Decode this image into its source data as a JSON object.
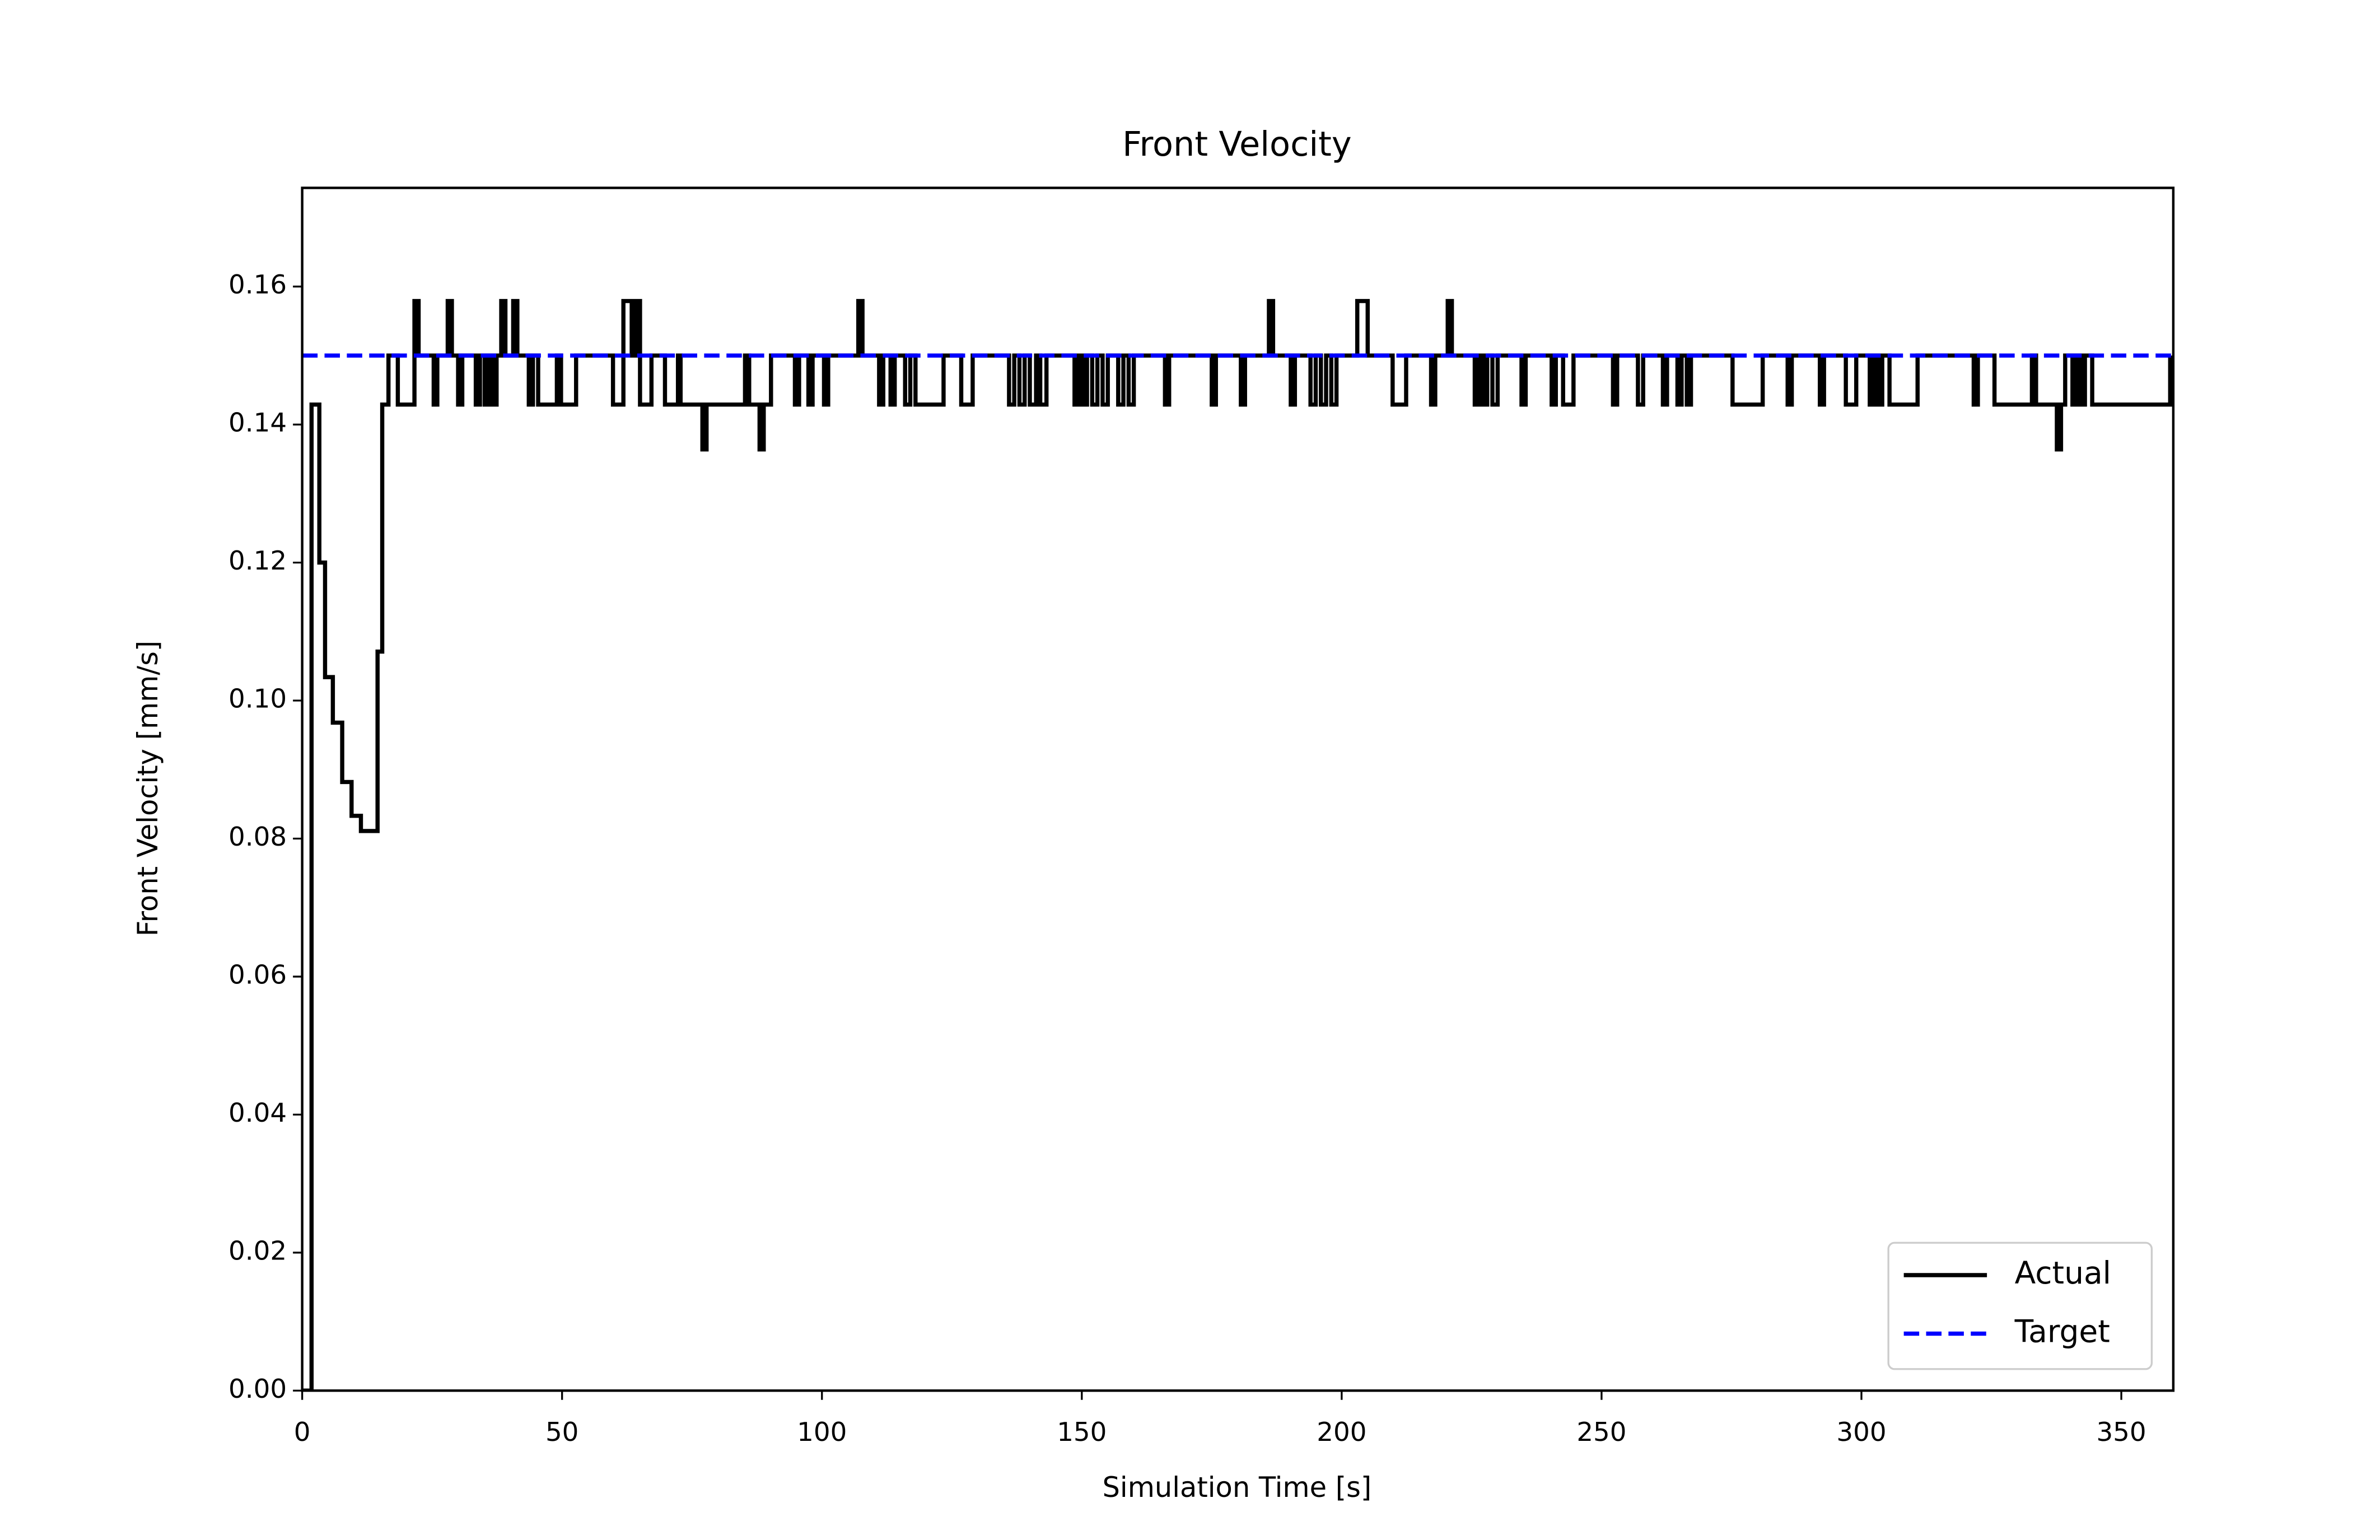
{
  "chart_data": {
    "type": "line",
    "drawstyle": "steps-post",
    "title": "Front Velocity",
    "xlabel": "Simulation Time [s]",
    "ylabel": "Front Velocity [mm/s]",
    "xlim": [
      0,
      360
    ],
    "ylim": [
      0,
      0.1743
    ],
    "xticks": [
      0,
      50,
      100,
      150,
      200,
      250,
      300,
      350
    ],
    "yticks": [
      {
        "value": 0,
        "label": "0.00"
      },
      0.02,
      0.04,
      0.06,
      0.08,
      {
        "value": 0.1,
        "label": "0.10"
      },
      0.12,
      0.14,
      0.16
    ],
    "legend": "lower right",
    "grid": false,
    "series": [
      {
        "name": "Actual",
        "color": "#000000",
        "dash": false,
        "x": [
          0,
          1.8,
          3.3,
          4.4,
          5.9,
          7.7,
          9.5,
          11.3,
          14.5,
          15.4,
          16.6,
          18.4,
          21.6,
          22.4,
          25.3,
          26,
          28,
          28.8,
          30,
          30.8,
          33.4,
          34.2,
          35.1,
          35.8,
          36.6,
          37.4,
          38.3,
          39.1,
          40.6,
          41.4,
          43.6,
          44.4,
          45.4,
          49,
          49.8,
          52.7,
          59.8,
          61.8,
          63.4,
          64.2,
          65,
          67.2,
          69.8,
          72.3,
          72.8,
          77,
          77.8,
          85.2,
          86,
          88,
          88.8,
          90.2,
          94.8,
          95.6,
          97.4,
          98.2,
          100.4,
          101.2,
          107,
          107.8,
          111,
          111.8,
          113.2,
          114,
          116,
          117,
          118,
          123.4,
          126.8,
          129,
          136,
          137,
          138,
          139,
          140,
          141.2,
          142,
          143.2,
          148.6,
          149.4,
          150.2,
          151,
          152,
          153,
          154,
          155,
          157,
          158,
          159,
          160,
          166,
          166.8,
          175,
          175.8,
          180.6,
          181.4,
          186,
          186.8,
          190.2,
          191,
          194,
          195,
          196,
          197,
          198,
          199,
          203,
          205,
          209.8,
          212.4,
          217.2,
          218,
          220.4,
          221.2,
          225.6,
          226.4,
          227.2,
          228,
          229,
          230,
          234.6,
          235.4,
          240.4,
          241.2,
          242.6,
          244.6,
          252.2,
          253,
          257,
          258,
          261.8,
          262.6,
          264.6,
          265.4,
          266.4,
          267.2,
          275.2,
          281,
          285.8,
          286.6,
          292,
          292.8,
          297,
          299,
          301.6,
          302.4,
          303.2,
          304,
          305.4,
          310.8,
          321.6,
          322.4,
          325.6,
          332.8,
          333.6,
          337.6,
          338.4,
          339.2,
          340.6,
          341.4,
          342.2,
          343,
          344.4,
          359.4
        ],
        "values": [
          0,
          0.1429,
          0.12,
          0.1034,
          0.0968,
          0.0882,
          0.0833,
          0.0811,
          0.1071,
          0.1429,
          0.15,
          0.1429,
          0.1579,
          0.15,
          0.1429,
          0.15,
          0.1579,
          0.15,
          0.1429,
          0.15,
          0.1429,
          0.15,
          0.1429,
          0.15,
          0.1429,
          0.15,
          0.1579,
          0.15,
          0.1579,
          0.15,
          0.1429,
          0.15,
          0.1429,
          0.15,
          0.1429,
          0.15,
          0.1429,
          0.1579,
          0.15,
          0.1579,
          0.1429,
          0.15,
          0.1429,
          0.15,
          0.1429,
          0.1364,
          0.1429,
          0.15,
          0.1429,
          0.1364,
          0.1429,
          0.15,
          0.1429,
          0.15,
          0.1429,
          0.15,
          0.1429,
          0.15,
          0.1579,
          0.15,
          0.1429,
          0.15,
          0.1429,
          0.15,
          0.1429,
          0.15,
          0.1429,
          0.15,
          0.1429,
          0.15,
          0.1429,
          0.15,
          0.1429,
          0.15,
          0.1429,
          0.15,
          0.1429,
          0.15,
          0.1429,
          0.15,
          0.1429,
          0.15,
          0.1429,
          0.15,
          0.1429,
          0.15,
          0.1429,
          0.15,
          0.1429,
          0.15,
          0.1429,
          0.15,
          0.1429,
          0.15,
          0.1429,
          0.15,
          0.1579,
          0.15,
          0.1429,
          0.15,
          0.1429,
          0.15,
          0.1429,
          0.15,
          0.1429,
          0.15,
          0.1579,
          0.15,
          0.1429,
          0.15,
          0.1429,
          0.15,
          0.1579,
          0.15,
          0.1429,
          0.15,
          0.1429,
          0.15,
          0.1429,
          0.15,
          0.1429,
          0.15,
          0.1429,
          0.15,
          0.1429,
          0.15,
          0.1429,
          0.15,
          0.1429,
          0.15,
          0.1429,
          0.15,
          0.1429,
          0.15,
          0.1429,
          0.15,
          0.1429,
          0.15,
          0.1429,
          0.15,
          0.1429,
          0.15,
          0.1429,
          0.15,
          0.1429,
          0.15,
          0.1429,
          0.15,
          0.1429,
          0.15,
          0.1429,
          0.15,
          0.1429,
          0.15,
          0.1429,
          0.1364,
          0.1429,
          0.15,
          0.1429,
          0.15,
          0.1429,
          0.15,
          0.1429,
          0.15
        ]
      },
      {
        "name": "Target",
        "color": "#0000ff",
        "dash": true,
        "x": [
          0,
          360
        ],
        "values": [
          0.15,
          0.15
        ]
      }
    ]
  }
}
